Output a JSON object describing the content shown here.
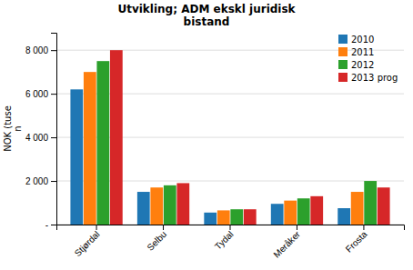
{
  "chart_data": {
    "type": "bar",
    "title": "Utvikling; ADM ekskl juridisk\nbistand",
    "ylabel": "NOK (tuse\nn",
    "categories": [
      "Stjørdal",
      "Selbu",
      "Tydal",
      "Meråker",
      "Frosta"
    ],
    "series": [
      {
        "name": "2010",
        "values": [
          6200,
          1500,
          550,
          950,
          750
        ]
      },
      {
        "name": "2011",
        "values": [
          7000,
          1700,
          650,
          1100,
          1500
        ]
      },
      {
        "name": "2012",
        "values": [
          7500,
          1800,
          700,
          1200,
          2000
        ]
      },
      {
        "name": "2013 prog",
        "values": [
          8000,
          1900,
          700,
          1300,
          1700
        ]
      }
    ],
    "ylim": [
      0,
      8800
    ],
    "yticks": [
      {
        "value": 0,
        "label": "-"
      },
      {
        "value": 2000,
        "label": "2 000"
      },
      {
        "value": 4000,
        "label": "4 000"
      },
      {
        "value": 6000,
        "label": "6 000"
      },
      {
        "value": 8000,
        "label": "8 000"
      }
    ],
    "grid": true,
    "legend": "upper right"
  }
}
